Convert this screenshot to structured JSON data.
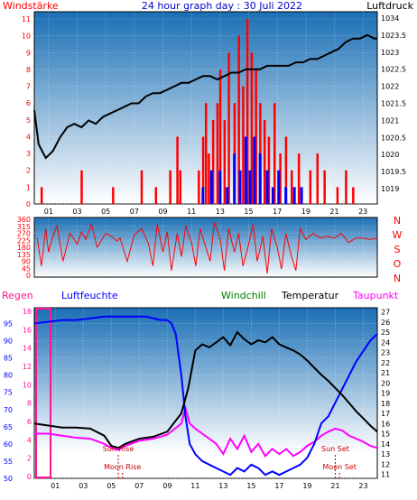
{
  "header": {
    "left_label": "Windstärke",
    "title": "24 hour graph day : 30 Juli 2022",
    "right_label": "Luftdruck"
  },
  "colors": {
    "wind": "#ff0000",
    "gust": "#0000ff",
    "pressure": "#000000",
    "humidity": "#0000ff",
    "windchill": "#008000",
    "temperature": "#000000",
    "dewpoint": "#ff00ff",
    "rain": "#ff1493",
    "title": "#0000cc",
    "panel_top": "#1a6fb5",
    "panel_bottom": "#ffffff"
  },
  "x_ticks": [
    "01",
    "03",
    "05",
    "07",
    "09",
    "11",
    "13",
    "15",
    "17",
    "19",
    "21",
    "23"
  ],
  "chart_data": [
    {
      "type": "line",
      "id": "wind-pressure",
      "left_axis": {
        "label": "Windstärke",
        "ticks": [
          0,
          1,
          2,
          3,
          4,
          5,
          6,
          7,
          8,
          9,
          10,
          11
        ],
        "range": [
          0,
          11
        ]
      },
      "right_axis": {
        "label": "Luftdruck",
        "ticks": [
          "1019",
          "1019.5",
          "1020",
          "1020.5",
          "1021",
          "1021.5",
          "1022",
          "1022.5",
          "1023",
          "1023.5",
          "1034"
        ],
        "range": [
          1018.8,
          1034.2
        ]
      },
      "x_range": [
        0,
        24
      ],
      "series": [
        {
          "key": "wind",
          "type": "bar",
          "x": [
            0.5,
            3.3,
            5.5,
            7.5,
            8.5,
            9.5,
            10.0,
            10.2,
            11.5,
            11.8,
            12.0,
            12.2,
            12.5,
            12.8,
            13.0,
            13.3,
            13.6,
            14.0,
            14.3,
            14.6,
            14.9,
            15.2,
            15.5,
            15.8,
            16.1,
            16.4,
            16.8,
            17.2,
            17.6,
            18.0,
            18.5,
            19.3,
            19.8,
            20.3,
            21.2,
            21.8,
            22.3
          ],
          "values": [
            1,
            2,
            1,
            2,
            1,
            2,
            4,
            2,
            2,
            4,
            6,
            3,
            5,
            6,
            8,
            5,
            9,
            6,
            10,
            7,
            11,
            9,
            8,
            6,
            5,
            4,
            6,
            3,
            4,
            2,
            3,
            2,
            3,
            2,
            1,
            2,
            1
          ]
        },
        {
          "key": "gust",
          "type": "bar",
          "x": [
            11.8,
            12.4,
            13.0,
            13.5,
            14.0,
            14.4,
            14.8,
            15.1,
            15.4,
            15.8,
            16.3,
            16.7,
            17.1,
            17.6,
            18.2,
            18.7
          ],
          "values": [
            1,
            2,
            2,
            1,
            3,
            2,
            4,
            2,
            4,
            3,
            2,
            1,
            2,
            1,
            1,
            1
          ]
        },
        {
          "key": "pressure",
          "type": "line",
          "x": [
            0,
            0.3,
            0.8,
            1.3,
            1.8,
            2.3,
            2.8,
            3.3,
            3.8,
            4.3,
            4.8,
            5.3,
            5.8,
            6.3,
            6.8,
            7.3,
            7.8,
            8.3,
            8.8,
            9.3,
            9.8,
            10.3,
            10.8,
            11.3,
            11.8,
            12.3,
            12.8,
            13.3,
            13.8,
            14.3,
            14.8,
            15.3,
            15.8,
            16.3,
            16.8,
            17.3,
            17.8,
            18.3,
            18.8,
            19.3,
            19.8,
            20.3,
            20.8,
            21.3,
            21.8,
            22.3,
            22.8,
            23.3,
            23.8,
            24.0
          ],
          "values": [
            1021.3,
            1020.3,
            1019.9,
            1020.1,
            1020.5,
            1020.8,
            1020.9,
            1020.8,
            1021.0,
            1020.9,
            1021.1,
            1021.2,
            1021.3,
            1021.4,
            1021.5,
            1021.5,
            1021.7,
            1021.8,
            1021.8,
            1021.9,
            1022.0,
            1022.1,
            1022.1,
            1022.2,
            1022.3,
            1022.3,
            1022.2,
            1022.3,
            1022.4,
            1022.4,
            1022.5,
            1022.5,
            1022.5,
            1022.6,
            1022.6,
            1022.6,
            1022.6,
            1022.7,
            1022.7,
            1022.8,
            1022.8,
            1022.9,
            1023.0,
            1023.1,
            1023.3,
            1023.4,
            1023.4,
            1023.5,
            1023.4,
            1023.4
          ]
        }
      ]
    },
    {
      "type": "scatter",
      "id": "wind-direction",
      "left_axis": {
        "ticks": [
          0,
          45,
          90,
          135,
          180,
          225,
          270,
          315,
          360
        ],
        "range": [
          0,
          360
        ]
      },
      "right_labels": [
        "N",
        "W",
        "S",
        "O",
        "N"
      ],
      "x_range": [
        0,
        24
      ],
      "series": [
        {
          "key": "direction",
          "type": "line",
          "x": [
            0.2,
            0.5,
            0.8,
            1.0,
            1.3,
            1.6,
            2.0,
            2.5,
            3.0,
            3.3,
            3.6,
            4.0,
            4.4,
            5.0,
            5.4,
            5.8,
            6.0,
            6.5,
            7.0,
            7.5,
            8.0,
            8.3,
            8.6,
            9.0,
            9.3,
            9.6,
            10.0,
            10.3,
            10.6,
            11.0,
            11.3,
            11.6,
            12.0,
            12.3,
            12.6,
            13.0,
            13.3,
            13.6,
            14.0,
            14.3,
            14.6,
            15.0,
            15.3,
            15.6,
            16.0,
            16.3,
            16.6,
            17.0,
            17.3,
            17.6,
            18.0,
            18.3,
            18.6,
            19.0,
            19.5,
            20.0,
            20.5,
            21.0,
            21.5,
            22.0,
            22.5,
            23.0,
            23.5,
            24.0
          ],
          "values": [
            240,
            60,
            300,
            150,
            250,
            320,
            90,
            270,
            200,
            280,
            230,
            330,
            180,
            270,
            250,
            220,
            240,
            90,
            260,
            300,
            200,
            60,
            330,
            150,
            280,
            30,
            270,
            120,
            320,
            210,
            60,
            300,
            180,
            90,
            340,
            240,
            30,
            300,
            150,
            270,
            60,
            200,
            330,
            90,
            250,
            10,
            300,
            180,
            40,
            270,
            120,
            30,
            300,
            230,
            270,
            240,
            250,
            240,
            270,
            210,
            240,
            240,
            230,
            240
          ]
        }
      ]
    },
    {
      "type": "line",
      "id": "temperature-humidity",
      "left_axis": {
        "ticks": [
          50,
          55,
          60,
          65,
          70,
          75,
          80,
          85,
          90,
          95
        ],
        "range": [
          50,
          98
        ]
      },
      "right_axis": {
        "ticks": [
          11,
          12,
          13,
          14,
          15,
          16,
          17,
          18,
          19,
          20,
          21,
          22,
          23,
          24,
          25,
          26,
          27
        ],
        "range": [
          10.6,
          27.4
        ]
      },
      "left_inner_ticks": [
        0,
        2,
        4,
        6,
        8,
        10,
        12,
        14,
        16,
        18
      ],
      "x_range": [
        -0.5,
        24
      ],
      "series": [
        {
          "key": "humidity",
          "type": "line",
          "x": [
            -0.5,
            0.5,
            1.5,
            2.5,
            3.5,
            4.5,
            5.5,
            6.5,
            7.5,
            8.5,
            9.0,
            9.3,
            9.6,
            10.0,
            10.3,
            10.6,
            11.0,
            11.5,
            12.0,
            12.5,
            13.0,
            13.5,
            14.0,
            14.5,
            15.0,
            15.5,
            16.0,
            16.5,
            17.0,
            17.5,
            18.0,
            18.5,
            19.0,
            19.5,
            20.0,
            20.5,
            21.0,
            21.5,
            22.0,
            22.5,
            23.0,
            23.5,
            24.0
          ],
          "values": [
            95,
            95.5,
            96,
            96,
            96.5,
            97,
            97,
            97,
            97,
            96,
            96,
            95,
            92,
            80,
            68,
            60,
            57,
            55,
            54,
            53,
            52,
            51,
            53,
            52,
            54,
            53,
            51,
            52,
            51,
            52,
            53,
            54,
            56,
            60,
            66,
            68,
            72,
            76,
            80,
            84,
            87,
            90,
            92
          ]
        },
        {
          "key": "temperature",
          "type": "line",
          "x": [
            -0.5,
            0.5,
            1.5,
            2.5,
            3.5,
            4.5,
            5.0,
            5.5,
            6.0,
            7.0,
            8.0,
            9.0,
            10.0,
            10.5,
            11.0,
            11.5,
            12.0,
            12.5,
            13.0,
            13.5,
            14.0,
            14.5,
            15.0,
            15.5,
            16.0,
            16.5,
            17.0,
            17.5,
            18.0,
            18.5,
            19.0,
            19.5,
            20.0,
            20.5,
            21.0,
            21.5,
            22.0,
            22.5,
            23.0,
            23.5,
            24.0
          ],
          "values": [
            16,
            15.8,
            15.6,
            15.6,
            15.5,
            14.8,
            13.8,
            13.6,
            14.0,
            14.5,
            14.7,
            15.2,
            17.0,
            19.5,
            23.2,
            23.8,
            23.5,
            24.0,
            24.5,
            23.7,
            25.0,
            24.3,
            23.8,
            24.2,
            24.0,
            24.5,
            23.8,
            23.5,
            23.2,
            22.8,
            22.2,
            21.5,
            20.8,
            20.2,
            19.5,
            18.8,
            18.0,
            17.2,
            16.5,
            15.8,
            15.2
          ]
        },
        {
          "key": "windchill",
          "type": "line",
          "x": [
            -0.5,
            0.5,
            1.5,
            2.5,
            3.5,
            4.5,
            5.0,
            5.5,
            6.0,
            7.0,
            8.0,
            9.0,
            10.0,
            10.5,
            11.0,
            11.5,
            12.0,
            12.5,
            13.0,
            13.5,
            14.0,
            14.5,
            15.0,
            15.5,
            16.0,
            16.5,
            17.0,
            17.5,
            18.0,
            18.5,
            19.0,
            19.5,
            20.0,
            20.5,
            21.0,
            21.5,
            22.0,
            22.5,
            23.0,
            23.5,
            24.0
          ],
          "values": [
            16,
            15.8,
            15.6,
            15.6,
            15.5,
            14.8,
            13.8,
            13.6,
            14.0,
            14.5,
            14.7,
            15.2,
            17.0,
            19.5,
            23.2,
            23.8,
            23.5,
            24.0,
            24.5,
            23.7,
            25.0,
            24.3,
            23.8,
            24.2,
            24.0,
            24.5,
            23.8,
            23.5,
            23.2,
            22.8,
            22.2,
            21.5,
            20.8,
            20.2,
            19.5,
            18.8,
            18.0,
            17.2,
            16.5,
            15.8,
            15.2
          ]
        },
        {
          "key": "dewpoint",
          "type": "line",
          "x": [
            -0.5,
            0.5,
            1.5,
            2.5,
            3.5,
            4.5,
            5.0,
            5.5,
            6.0,
            7.0,
            8.0,
            9.0,
            10.0,
            10.3,
            10.6,
            11.0,
            11.5,
            12.0,
            12.5,
            13.0,
            13.5,
            14.0,
            14.5,
            15.0,
            15.5,
            16.0,
            16.5,
            17.0,
            17.5,
            18.0,
            18.5,
            19.0,
            19.5,
            20.0,
            20.5,
            21.0,
            21.5,
            22.0,
            22.5,
            23.0,
            23.5,
            24.0
          ],
          "values": [
            15,
            15.0,
            14.8,
            14.6,
            14.5,
            14.0,
            13.6,
            13.4,
            13.8,
            14.3,
            14.5,
            14.9,
            16.0,
            17.5,
            16.0,
            15.5,
            15.0,
            14.5,
            14.0,
            13.0,
            14.5,
            13.5,
            14.8,
            13.2,
            14.0,
            12.8,
            13.5,
            13.0,
            13.5,
            12.8,
            13.2,
            13.8,
            14.2,
            14.8,
            15.2,
            15.5,
            15.3,
            14.8,
            14.5,
            14.2,
            13.8,
            13.6
          ]
        }
      ],
      "rain_marker": {
        "x": -0.5,
        "label": "Regen"
      },
      "annotations": [
        {
          "text": "Sun Rise",
          "x": 5.5
        },
        {
          "text": "Sun Set",
          "x": 21.0
        },
        {
          "text": "Moon Rise",
          "x": 5.8
        },
        {
          "text": "Moon Set",
          "x": 21.3
        }
      ]
    }
  ],
  "legend": {
    "regen": "Regen",
    "luftfeuchte": "Luftfeuchte",
    "windchill": "Windchill",
    "temperatur": "Temperatur",
    "taupunkt": "Taupunkt"
  }
}
